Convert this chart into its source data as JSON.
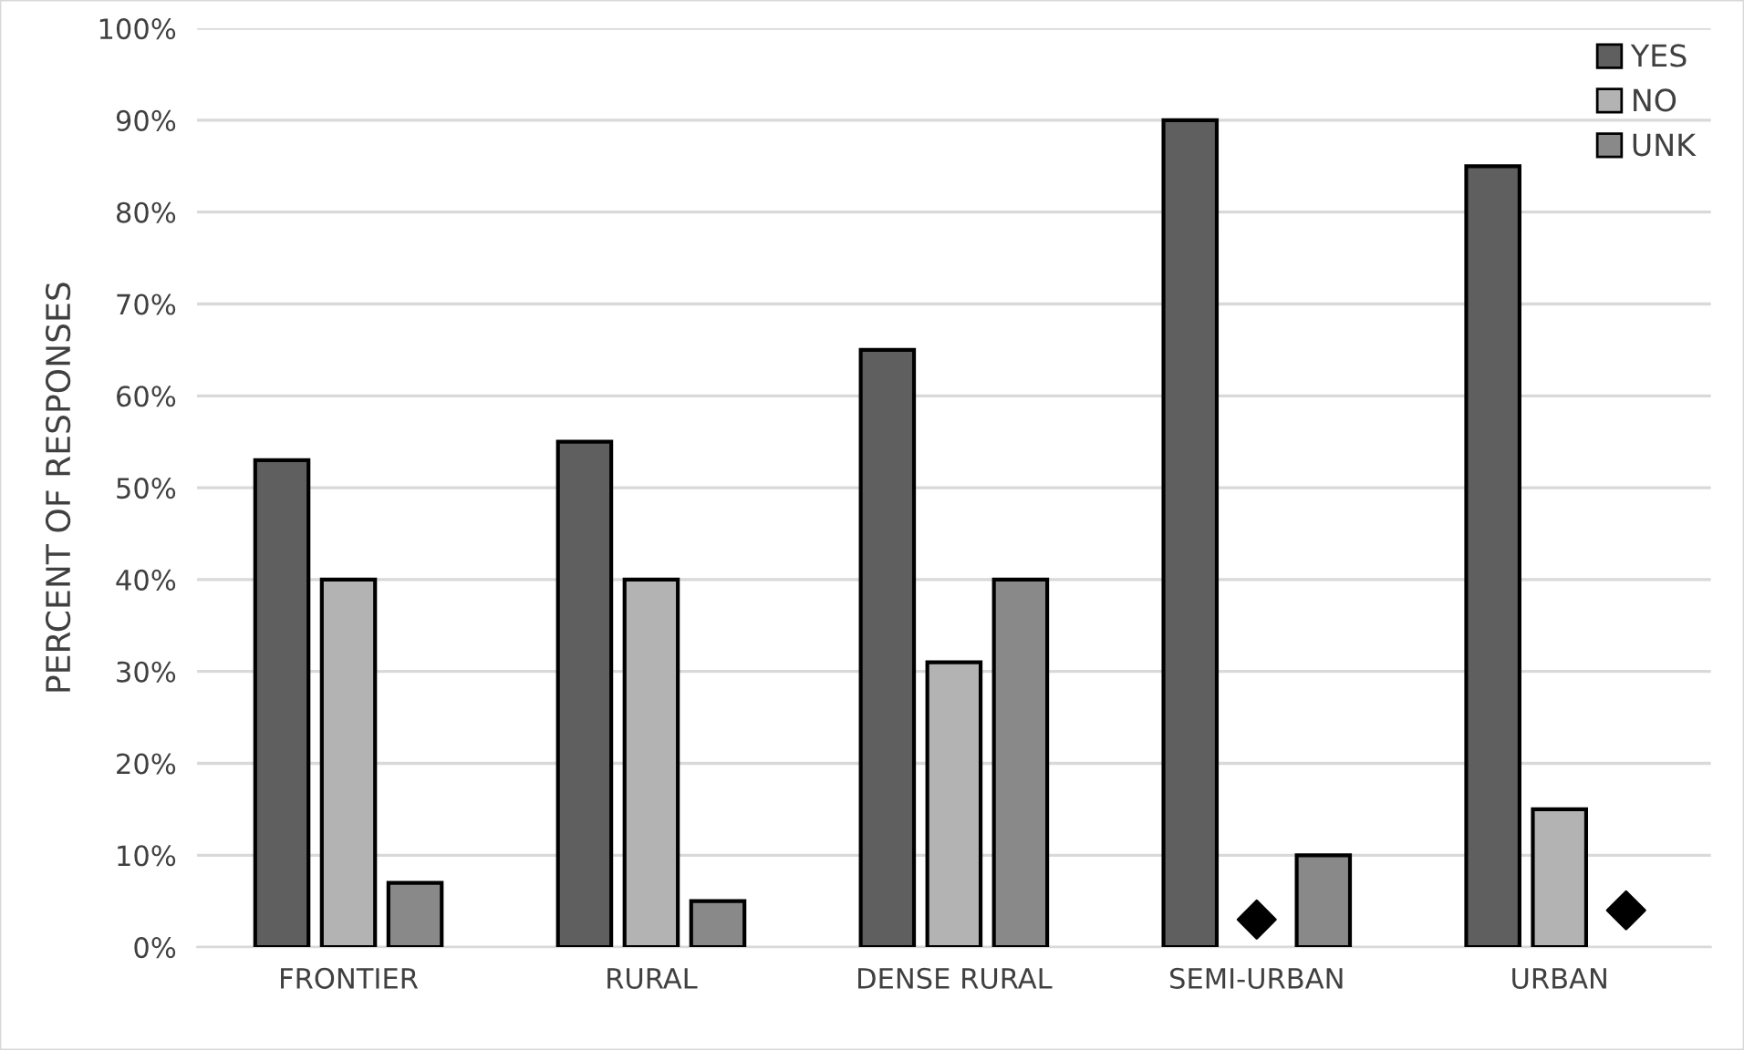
{
  "chart_data": {
    "type": "bar",
    "ylabel": "PERCENT OF RESPONSES",
    "categories": [
      "FRONTIER",
      "RURAL",
      "DENSE RURAL",
      "SEMI-URBAN",
      "URBAN"
    ],
    "series": [
      {
        "name": "YES",
        "color": "#5f5f5f",
        "values": [
          53,
          55,
          65,
          90,
          85
        ]
      },
      {
        "name": "NO",
        "color": "#b3b3b3",
        "values": [
          40,
          40,
          31,
          null,
          15
        ]
      },
      {
        "name": "UNK",
        "color": "#898989",
        "values": [
          7,
          5,
          40,
          10,
          null
        ]
      },
      {
        "type": "scatter",
        "color": "#000000",
        "marker": "diamond",
        "values": [
          null,
          null,
          null,
          3,
          4
        ]
      }
    ],
    "ylim": [
      0,
      100
    ],
    "yticks": [
      {
        "value": 0,
        "label": "0%"
      },
      {
        "value": 10,
        "label": "10%"
      },
      {
        "value": 20,
        "label": "20%"
      },
      {
        "value": 30,
        "label": "30%"
      },
      {
        "value": 40,
        "label": "40%"
      },
      {
        "value": 50,
        "label": "50%"
      },
      {
        "value": 60,
        "label": "60%"
      },
      {
        "value": 70,
        "label": "70%"
      },
      {
        "value": 80,
        "label": "80%"
      },
      {
        "value": 90,
        "label": "90%"
      },
      {
        "value": 100,
        "label": "100%"
      }
    ],
    "grid": "y",
    "legend": "top right"
  }
}
